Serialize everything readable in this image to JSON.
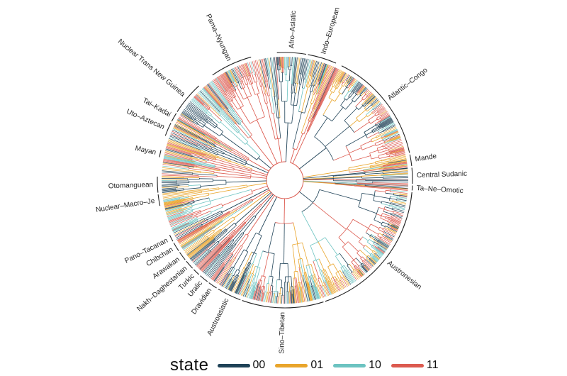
{
  "colors": {
    "00": "#1f4257",
    "01": "#e9a52b",
    "10": "#6cc3c1",
    "11": "#dc5a4f"
  },
  "legend": {
    "title": "state",
    "items": [
      {
        "label": "00",
        "color": "#1f4257"
      },
      {
        "label": "01",
        "color": "#e9a52b"
      },
      {
        "label": "10",
        "color": "#6cc3c1"
      },
      {
        "label": "11",
        "color": "#dc5a4f"
      }
    ]
  },
  "families": [
    {
      "name": "Afro–Asiatic",
      "start": 356,
      "end": 10,
      "state": "00"
    },
    {
      "name": "Indo–European",
      "start": 10,
      "end": 24,
      "state": "11"
    },
    {
      "name": "Atlantic–Congo",
      "start": 26,
      "end": 78,
      "state": "00"
    },
    {
      "name": "Mande",
      "start": 78,
      "end": 84,
      "state": "01"
    },
    {
      "name": "Central Sudanic",
      "start": 84,
      "end": 92,
      "state": "00"
    },
    {
      "name": "Ta–Ne–Omotic",
      "start": 92,
      "end": 95,
      "state": "11"
    },
    {
      "name": "Austronesian",
      "start": 95,
      "end": 162,
      "state": "00"
    },
    {
      "name": "Sino–Tibetan",
      "start": 162,
      "end": 200,
      "state": "11"
    },
    {
      "name": "Austroasiatic",
      "start": 200,
      "end": 212,
      "state": "00"
    },
    {
      "name": "Dravidian",
      "start": 212,
      "end": 217,
      "state": "11"
    },
    {
      "name": "Uralic",
      "start": 217,
      "end": 222,
      "state": "00"
    },
    {
      "name": "Turkic",
      "start": 222,
      "end": 226,
      "state": "11"
    },
    {
      "name": "Nakh–Daghestanian",
      "start": 226,
      "end": 231,
      "state": "00"
    },
    {
      "name": "Arawakan",
      "start": 231,
      "end": 236,
      "state": "01"
    },
    {
      "name": "Chibchan",
      "start": 236,
      "end": 241,
      "state": "11"
    },
    {
      "name": "Pano–Tacanan",
      "start": 241,
      "end": 245,
      "state": "00"
    },
    {
      "name": "Nuclear–Macro–Je",
      "start": 258,
      "end": 264,
      "state": "01"
    },
    {
      "name": "Otomanguean",
      "start": 264,
      "end": 272,
      "state": "00"
    },
    {
      "name": "Mayan",
      "start": 280,
      "end": 284,
      "state": "11"
    },
    {
      "name": "Uto–Aztecan",
      "start": 290,
      "end": 297,
      "state": "00"
    },
    {
      "name": "Tai–Kadai",
      "start": 297,
      "end": 302,
      "state": "11"
    },
    {
      "name": "Nuclear Trans New Guinea",
      "start": 302,
      "end": 318,
      "state": "00"
    },
    {
      "name": "Pama–Nyungan",
      "start": 325,
      "end": 345,
      "state": "11"
    }
  ]
}
